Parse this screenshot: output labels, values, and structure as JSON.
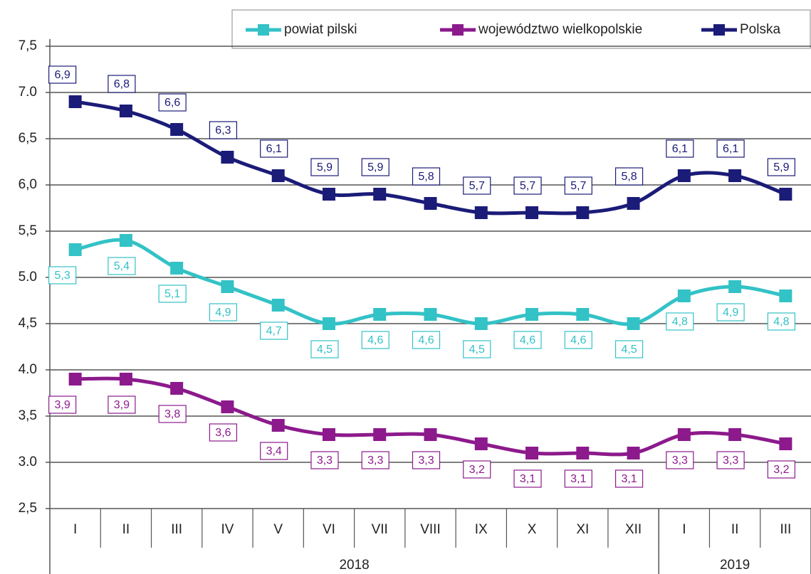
{
  "chart_data": {
    "type": "line",
    "category_groups": [
      {
        "label": "2018",
        "categories": [
          "I",
          "II",
          "III",
          "IV",
          "V",
          "VI",
          "VII",
          "VIII",
          "IX",
          "X",
          "XI",
          "XII"
        ]
      },
      {
        "label": "2019",
        "categories": [
          "I",
          "II",
          "III"
        ]
      }
    ],
    "ylim": [
      2.5,
      7.5
    ],
    "yticks": [
      {
        "value": 2.5,
        "label": "2,5"
      },
      {
        "value": 3.0,
        "label": "3.0"
      },
      {
        "value": 3.5,
        "label": "3,5"
      },
      {
        "value": 4.0,
        "label": "4.0"
      },
      {
        "value": 4.5,
        "label": "4,5"
      },
      {
        "value": 5.0,
        "label": "5.0"
      },
      {
        "value": 5.5,
        "label": "5,5"
      },
      {
        "value": 6.0,
        "label": "6,0"
      },
      {
        "value": 6.5,
        "label": "6,5"
      },
      {
        "value": 7.0,
        "label": "7.0"
      },
      {
        "value": 7.5,
        "label": "7,5"
      }
    ],
    "grid": true,
    "legend": "top-right",
    "series": [
      {
        "name": "powiat pilski",
        "color": "#33c2c6",
        "label_side": "below",
        "values": [
          5.3,
          5.4,
          5.1,
          4.9,
          4.7,
          4.5,
          4.6,
          4.6,
          4.5,
          4.6,
          4.6,
          4.5,
          4.8,
          4.9,
          4.8
        ],
        "value_labels": [
          "5,3",
          "5,4",
          "5,1",
          "4,9",
          "4,7",
          "4,5",
          "4,6",
          "4,6",
          "4,5",
          "4,6",
          "4,6",
          "4,5",
          "4,8",
          "4,9",
          "4,8"
        ]
      },
      {
        "name": "województwo wielkopolskie",
        "color": "#8c1a8c",
        "label_side": "below",
        "values": [
          3.9,
          3.9,
          3.8,
          3.6,
          3.4,
          3.3,
          3.3,
          3.3,
          3.2,
          3.1,
          3.1,
          3.1,
          3.3,
          3.3,
          3.2
        ],
        "value_labels": [
          "3,9",
          "3,9",
          "3,8",
          "3,6",
          "3,4",
          "3,3",
          "3,3",
          "3,3",
          "3,2",
          "3,1",
          "3,1",
          "3,1",
          "3,3",
          "3,3",
          "3,2"
        ]
      },
      {
        "name": "Polska",
        "color": "#1b1b78",
        "label_side": "above",
        "values": [
          6.9,
          6.8,
          6.6,
          6.3,
          6.1,
          5.9,
          5.9,
          5.8,
          5.7,
          5.7,
          5.7,
          5.8,
          6.1,
          6.1,
          5.9
        ],
        "value_labels": [
          "6,9",
          "6,8",
          "6,6",
          "6,3",
          "6,1",
          "5,9",
          "5,9",
          "5,8",
          "5,7",
          "5,7",
          "5,7",
          "5,8",
          "6,1",
          "6,1",
          "5,9"
        ]
      }
    ]
  }
}
